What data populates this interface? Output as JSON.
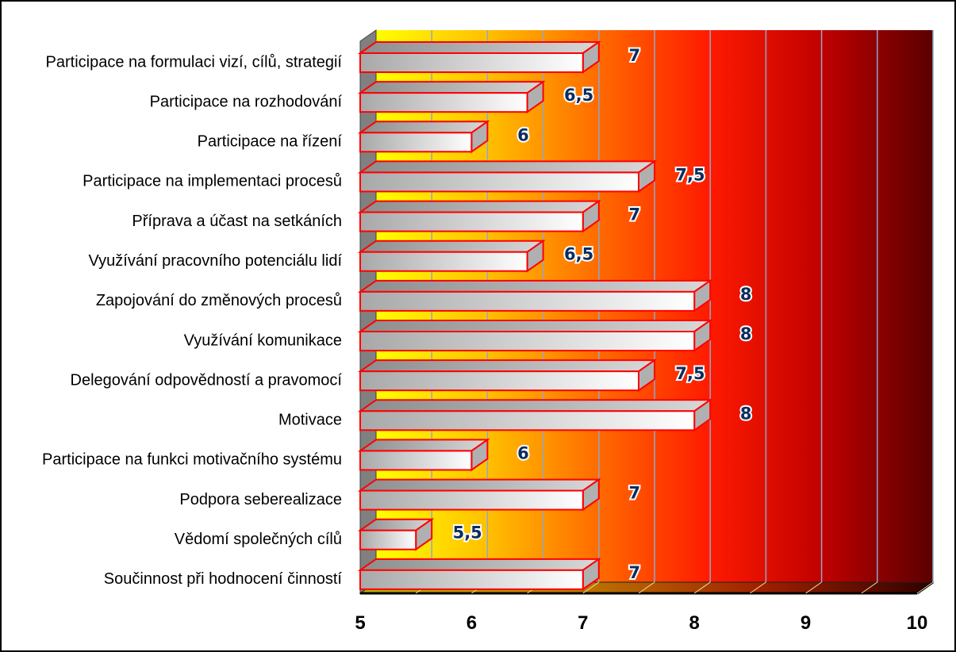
{
  "chart_data": {
    "type": "bar",
    "orientation": "horizontal",
    "categories": [
      "Participace na formulaci vizí, cílů, strategií",
      "Participace na rozhodování",
      "Participace na řízení",
      "Participace na implementaci procesů",
      "Příprava a účast na setkáních",
      "Využívání pracovního potenciálu lidí",
      "Zapojování do změnových procesů",
      "Využívání komunikace",
      "Delegování odpovědností a pravomocí",
      "Motivace",
      "Participace na funkci motivačního systému",
      "Podpora seberealizace",
      "Vědomí společných cílů",
      "Součinnost při hodnocení činností"
    ],
    "values": [
      7,
      6.5,
      6,
      7.5,
      7,
      6.5,
      8,
      8,
      7.5,
      8,
      6,
      7,
      5.5,
      7
    ],
    "value_labels": [
      "7",
      "6,5",
      "6",
      "7,5",
      "7",
      "6,5",
      "8",
      "8",
      "7,5",
      "8",
      "6",
      "7",
      "5,5",
      "7"
    ],
    "xlim": [
      5,
      10
    ],
    "xticks": [
      "5",
      "6",
      "7",
      "8",
      "9",
      "10"
    ],
    "title": "",
    "xlabel": "",
    "ylabel": "",
    "grid": true,
    "legend": "none",
    "colors": {
      "gradient": [
        "#ffff00",
        "#ffc000",
        "#ff6a00",
        "#ff1a00",
        "#c00000",
        "#5a0000"
      ],
      "bar_border": "#ff0000",
      "bar_fill": "#ffffff",
      "bar_shade": "#a8a8a8",
      "value_text": "#0b2d5e",
      "gridline": "#8fa8c8"
    }
  }
}
